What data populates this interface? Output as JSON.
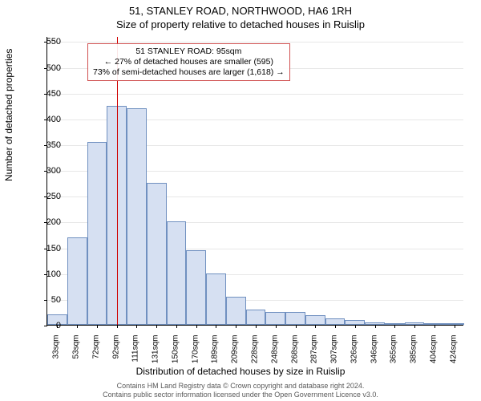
{
  "title_main": "51, STANLEY ROAD, NORTHWOOD, HA6 1RH",
  "title_sub": "Size of property relative to detached houses in Ruislip",
  "y_axis_label": "Number of detached properties",
  "x_axis_label": "Distribution of detached houses by size in Ruislip",
  "annotation": {
    "line1": "51 STANLEY ROAD: 95sqm",
    "line2": "← 27% of detached houses are smaller (595)",
    "line3": "73% of semi-detached houses are larger (1,618) →"
  },
  "footer": {
    "line1": "Contains HM Land Registry data © Crown copyright and database right 2024.",
    "line2": "Contains public sector information licensed under the Open Government Licence v3.0."
  },
  "chart": {
    "type": "histogram",
    "bar_fill": "#d6e0f2",
    "bar_border": "#7090c0",
    "grid_color": "#e7e7e7",
    "marker_color": "#d00000",
    "annotation_border": "#d05050",
    "background": "#ffffff",
    "ylim": [
      0,
      560
    ],
    "yticks": [
      0,
      50,
      100,
      150,
      200,
      250,
      300,
      350,
      400,
      450,
      500,
      550
    ],
    "marker_x_sqm": 95,
    "x_start_sqm": 26,
    "x_bin_width_sqm": 19.57,
    "categories": [
      "33sqm",
      "53sqm",
      "72sqm",
      "92sqm",
      "111sqm",
      "131sqm",
      "150sqm",
      "170sqm",
      "189sqm",
      "209sqm",
      "228sqm",
      "248sqm",
      "268sqm",
      "287sqm",
      "307sqm",
      "326sqm",
      "346sqm",
      "365sqm",
      "385sqm",
      "404sqm",
      "424sqm"
    ],
    "values": [
      20,
      170,
      355,
      425,
      420,
      275,
      200,
      145,
      100,
      55,
      30,
      25,
      25,
      18,
      12,
      10,
      5,
      3,
      5,
      3,
      3
    ]
  }
}
